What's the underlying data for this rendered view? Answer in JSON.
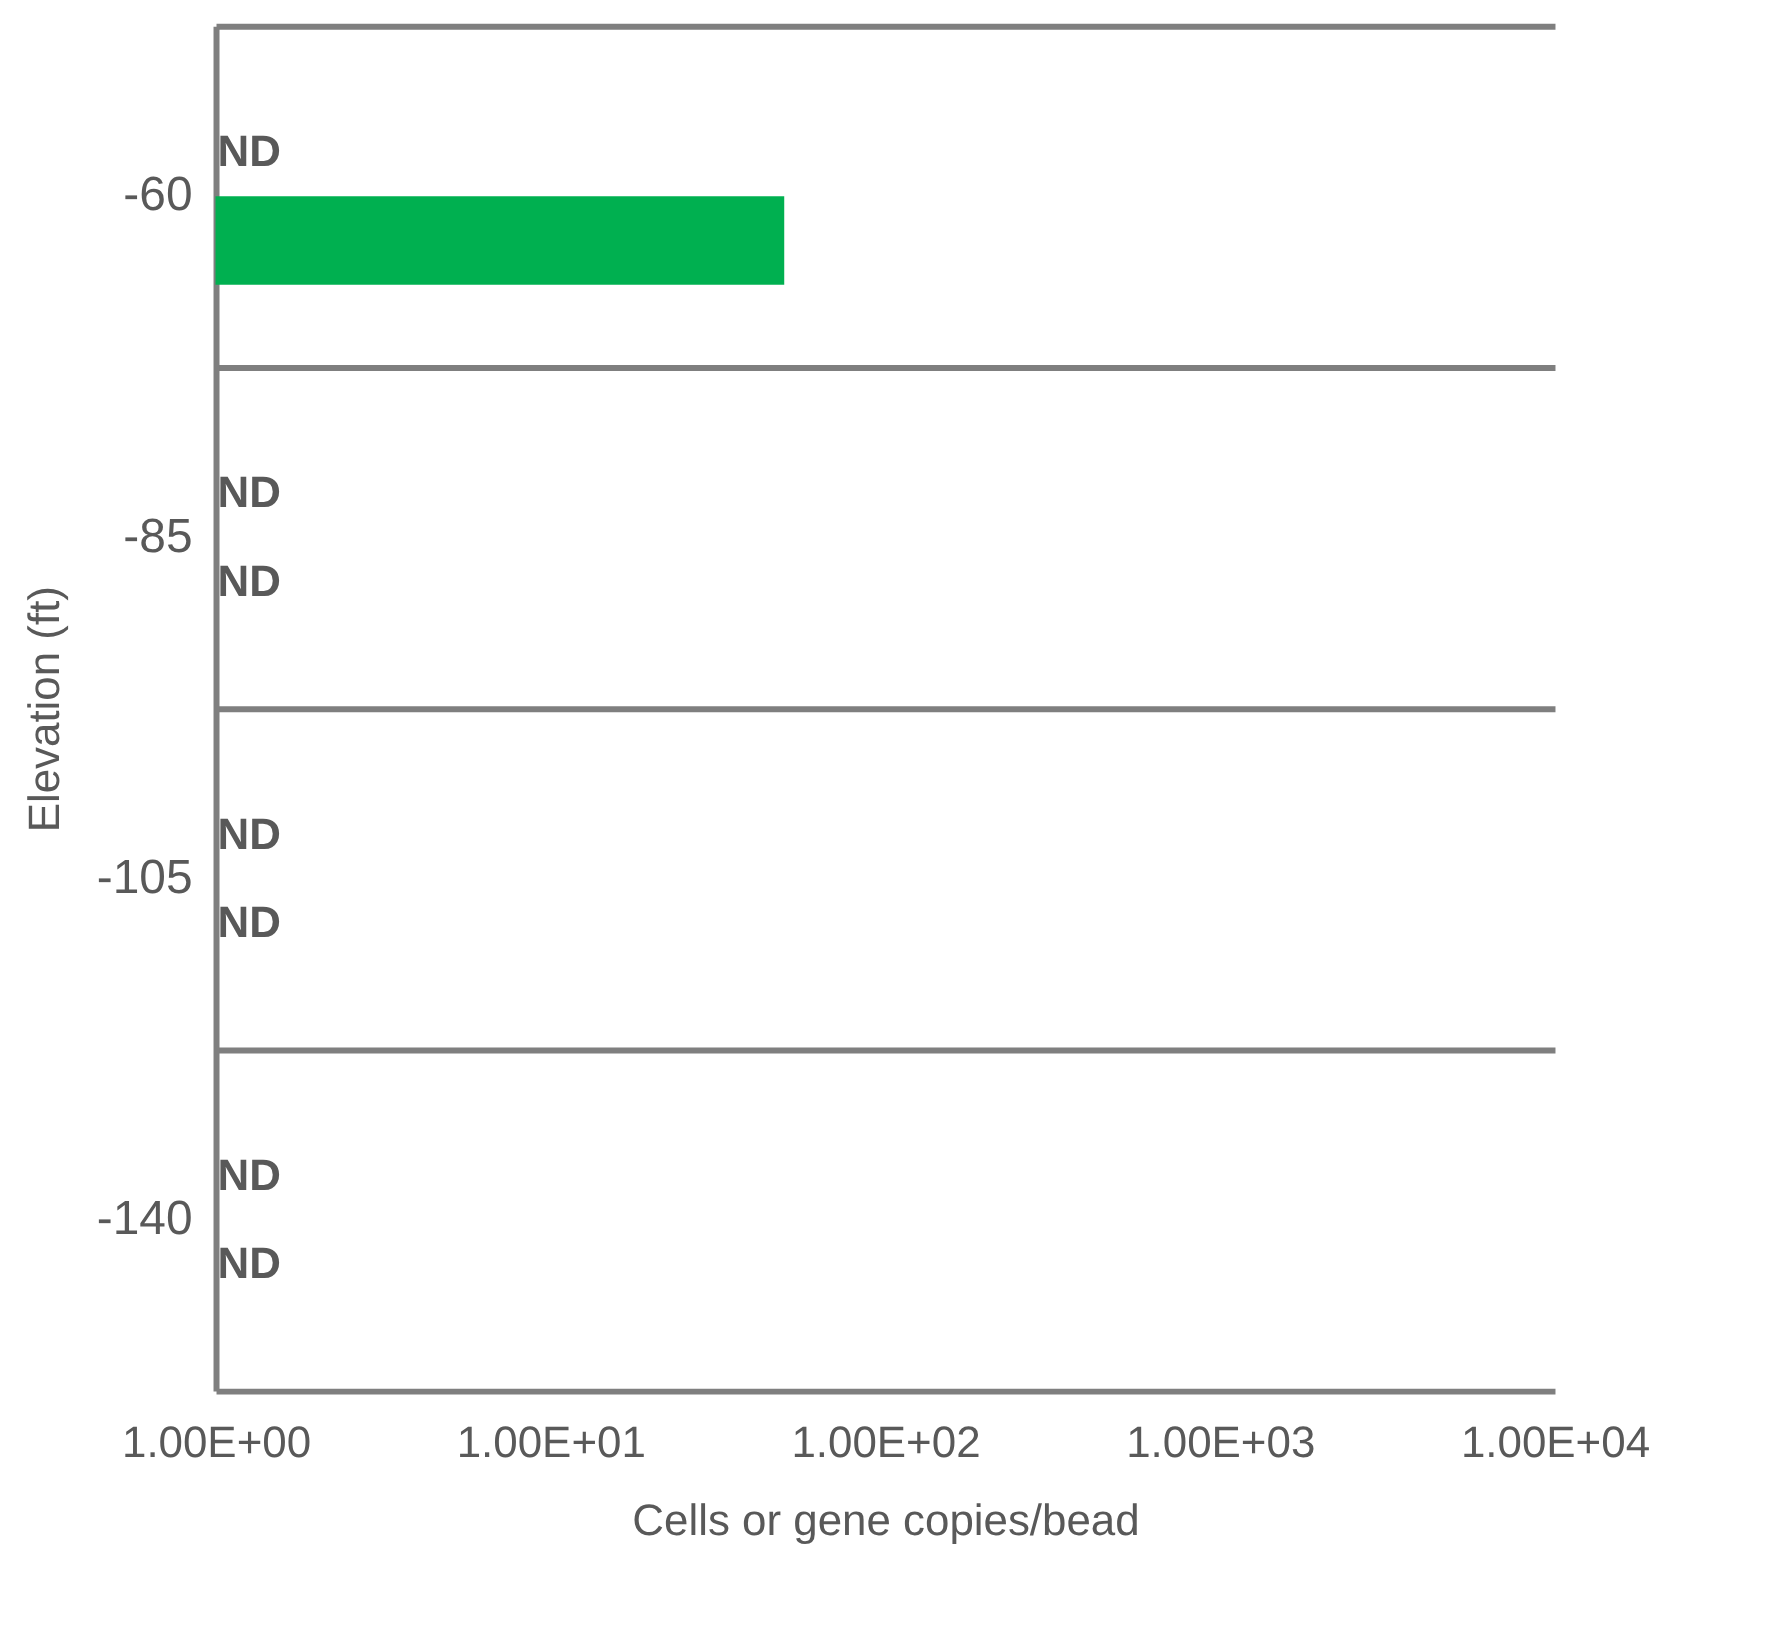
{
  "chart_data": {
    "type": "bar",
    "orientation": "horizontal",
    "log": "x",
    "categories": [
      "-60",
      "-85",
      "-105",
      "-140"
    ],
    "series": [
      {
        "values": [
          null,
          null,
          null,
          null
        ],
        "value_labels": [
          "ND",
          "ND",
          "ND",
          "ND"
        ]
      },
      {
        "color": "#00b050",
        "values": [
          50,
          null,
          null,
          null
        ],
        "value_labels": [
          null,
          "ND",
          "ND",
          "ND"
        ]
      }
    ],
    "xlim": [
      1,
      10000
    ],
    "xticks": [
      {
        "value": 1,
        "label": "1.00E+00"
      },
      {
        "value": 10,
        "label": "1.00E+01"
      },
      {
        "value": 100,
        "label": "1.00E+02"
      },
      {
        "value": 1000,
        "label": "1.00E+03"
      },
      {
        "value": 10000,
        "label": "1.00E+04"
      }
    ],
    "xlabel": "Cells or gene copies/bead",
    "ylabel": "Elevation (ft)",
    "grid": "y",
    "legend": false
  }
}
